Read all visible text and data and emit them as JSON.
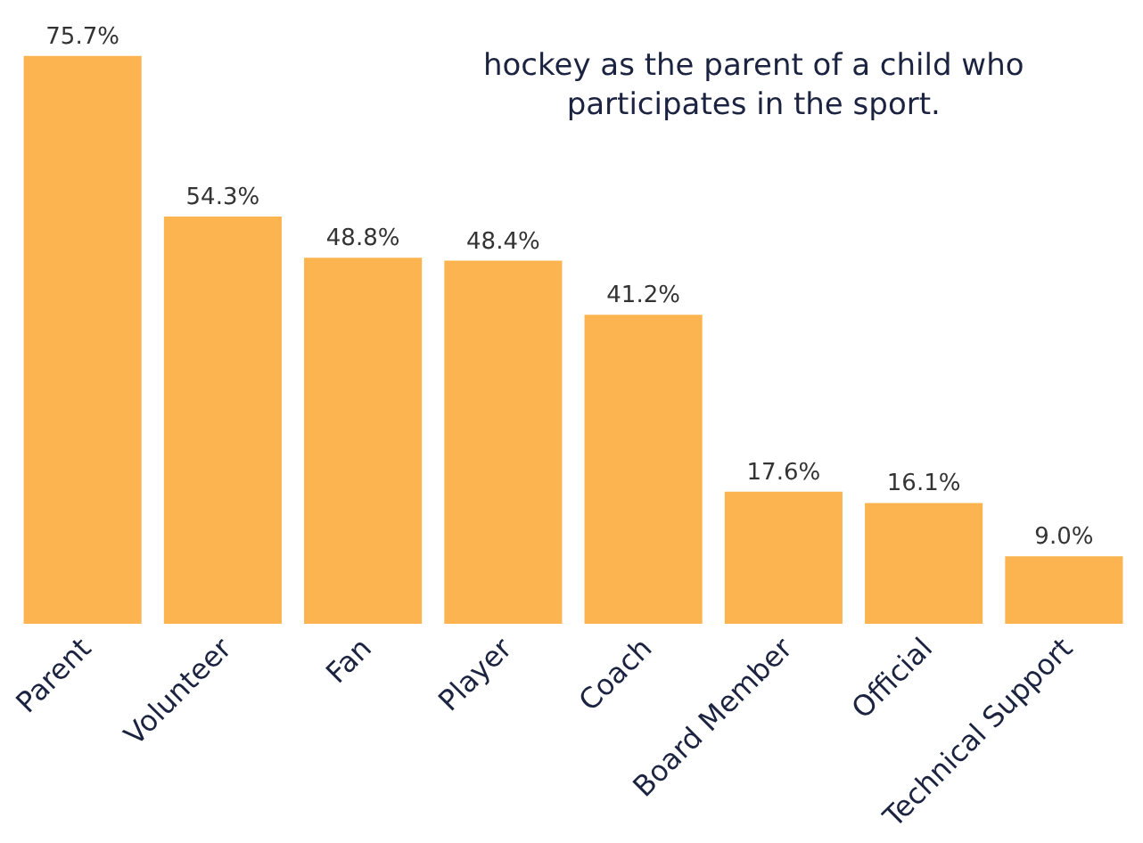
{
  "chart_data": {
    "type": "bar",
    "categories": [
      "Parent",
      "Volunteer",
      "Fan",
      "Player",
      "Coach",
      "Board Member",
      "Official",
      "Technical Support"
    ],
    "values": [
      75.7,
      54.3,
      48.8,
      48.4,
      41.2,
      17.6,
      16.1,
      9.0
    ],
    "value_labels": [
      "75.7%",
      "54.3%",
      "48.8%",
      "48.4%",
      "41.2%",
      "17.6%",
      "16.1%",
      "9.0%"
    ],
    "color": "#fbb44f",
    "annotations": [
      "hockey as the parent of a child who\nparticipates in the sport."
    ]
  }
}
